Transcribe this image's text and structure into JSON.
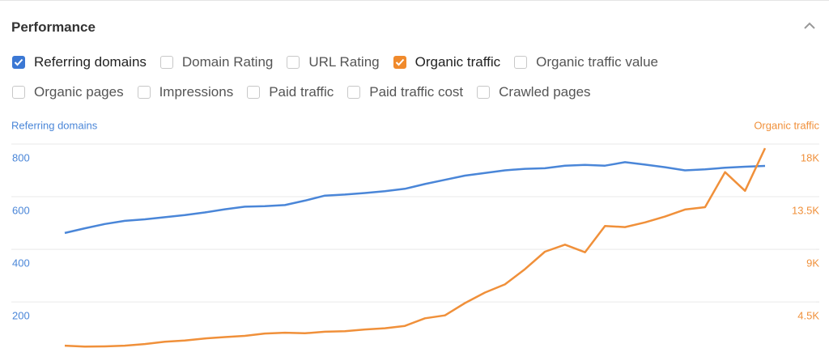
{
  "header": {
    "title": "Performance"
  },
  "controls": [
    {
      "label": "Referring domains",
      "checked": true,
      "color": "#3b78d4"
    },
    {
      "label": "Domain Rating",
      "checked": false
    },
    {
      "label": "URL Rating",
      "checked": false
    },
    {
      "label": "Organic traffic",
      "checked": true,
      "color": "#f08a2c"
    },
    {
      "label": "Organic traffic value",
      "checked": false
    },
    {
      "label": "Organic pages",
      "checked": false
    },
    {
      "label": "Impressions",
      "checked": false
    },
    {
      "label": "Paid traffic",
      "checked": false
    },
    {
      "label": "Paid traffic cost",
      "checked": false
    },
    {
      "label": "Crawled pages",
      "checked": false
    }
  ],
  "chart_data": {
    "type": "line",
    "y_label": "Referring domains",
    "y2_label": "Organic traffic",
    "ylim": [
      25,
      800
    ],
    "yticks": [
      200,
      400,
      600,
      800
    ],
    "y2lim": [
      562.5,
      18000
    ],
    "y2ticks": [
      {
        "value": 4500,
        "label": "4.5K"
      },
      {
        "value": 9000,
        "label": "9K"
      },
      {
        "value": 13500,
        "label": "13.5K"
      },
      {
        "value": 18000,
        "label": "18K"
      }
    ],
    "grid": true,
    "series": [
      {
        "name": "Referring domains",
        "color": "#4a86d8",
        "values": [
          462,
          480,
          496,
          508,
          514,
          522,
          530,
          540,
          552,
          562,
          564,
          568,
          585,
          604,
          608,
          614,
          621,
          630,
          648,
          664,
          680,
          690,
          700,
          706,
          708,
          718,
          721,
          718,
          731,
          722,
          712,
          700,
          704,
          710,
          714,
          717
        ]
      },
      {
        "name": "Organic traffic",
        "color": "#f0903a",
        "axis": "y2",
        "values": [
          760,
          690,
          700,
          760,
          900,
          1100,
          1200,
          1380,
          1500,
          1600,
          1800,
          1870,
          1820,
          1950,
          2000,
          2150,
          2250,
          2450,
          3100,
          3350,
          4400,
          5300,
          6000,
          7300,
          8800,
          9400,
          8750,
          11000,
          10900,
          11300,
          11800,
          12400,
          12600,
          15600,
          14000,
          17650
        ]
      }
    ]
  }
}
